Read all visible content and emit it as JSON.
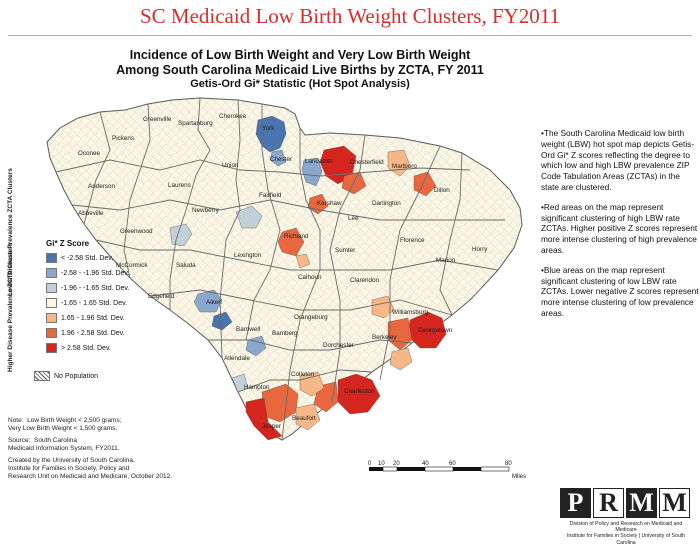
{
  "title": "SC Medicaid Low Birth Weight Clusters, FY2011",
  "subtitle": {
    "line1": "Incidence of Low Birth Weight and Very Low Birth Weight",
    "line2": "Among South Carolina Medicaid Live Births by ZCTA, FY 2011",
    "line3": "Getis-Ord Gi* Statistic (Hot Spot Analysis)"
  },
  "legend": {
    "title": "Gi* Z Score",
    "side_lower": "Lower Disease Prevalence ZCTA Clusters",
    "side_higher": "Higher Disease Prevalence ZCTA Clusters",
    "items": [
      {
        "label": "< -2.58 Std. Dev.",
        "color": "#4a74b0"
      },
      {
        "label": "-2.58 - -1.96 Std. Dev.",
        "color": "#8aa7cd"
      },
      {
        "label": "-1.96 - -1.65 Std. Dev.",
        "color": "#c2d0d8"
      },
      {
        "label": "-1.65 - 1.65 Std. Dev.",
        "color": "#fbf7e6"
      },
      {
        "label": "1.65 - 1.96 Std. Dev.",
        "color": "#f7b887"
      },
      {
        "label": "1.96 - 2.58 Std. Dev.",
        "color": "#e8673f"
      },
      {
        "label": "> 2.58 Std. Dev.",
        "color": "#d5251f"
      }
    ],
    "no_population": "No Population"
  },
  "notes": {
    "note1": "Note:  Low Birth Weight < 2,500 grams;\nVery Low Birth Weight < 1,500 grams.",
    "source": "Source:  South Carolina\nMedicaid Information System, FY2011.",
    "created": "Created by the University of South Carolina,\nInstitute for Families in Society, Policy and\nResearch Unit on Medicaid and Medicare, October 2012."
  },
  "bullets": [
    "•The South Carolina Medicaid low birth weight (LBW) hot spot map depicts Getis-Ord Gi* Z scores reflecting the degree to which low and high LBW prevalence ZIP Code Tabulation Areas (ZCTAs) in the state are clustered.",
    "•Red areas on the map represent significant clustering of high LBW rate ZCTAs.  Higher positive Z scores represent more intense clustering of high prevalence areas.",
    "•Blue areas on the map represent significant clustering of low LBW rate ZCTAs.  Lower negative Z scores represent more intense clustering of low prevalence areas."
  ],
  "counties": [
    "Greenville",
    "Spartanburg",
    "Cherokee",
    "York",
    "Pickens",
    "Oconee",
    "Union",
    "Chester",
    "Lancaster",
    "Chesterfield",
    "Marlboro",
    "Anderson",
    "Laurens",
    "Dillon",
    "Fairfield",
    "Kershaw",
    "Darlington",
    "Abbeville",
    "Newberry",
    "Lee",
    "Greenwood",
    "Richland",
    "Sumter",
    "Florence",
    "Marion",
    "Horry",
    "McCormick",
    "Saluda",
    "Lexington",
    "Edgefield",
    "Calhoun",
    "Clarendon",
    "Williamsburg",
    "Aiken",
    "Orangeburg",
    "Georgetown",
    "Barnwell",
    "Bamberg",
    "Berkeley",
    "Dorchester",
    "Allendale",
    "Colleton",
    "Charleston",
    "Hampton",
    "Beaufort",
    "Jasper"
  ],
  "scale": {
    "ticks": [
      "0",
      "10",
      "20",
      "40",
      "60",
      "80"
    ],
    "unit": "Miles"
  },
  "logo": {
    "letters": [
      "P",
      "R",
      "M",
      "M"
    ],
    "line1": "Division of Policy and Research on Medicaid and Medicare",
    "line2": "Institute for Families in Society | University of South Carolina"
  }
}
